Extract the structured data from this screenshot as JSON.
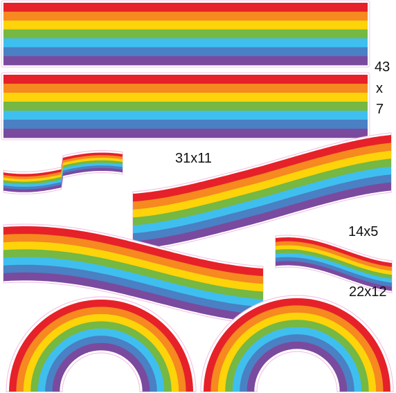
{
  "palette": {
    "red": "#e62129",
    "orange": "#f6891f",
    "yellow": "#fdd30a",
    "green": "#75b843",
    "light_blue": "#3fbfef",
    "blue": "#4a80c4",
    "purple": "#7a4a9e",
    "outline": "#f2c4e4"
  },
  "labels": {
    "stripe_width": "43",
    "stripe_x": "x",
    "stripe_height": "7",
    "wave_large": "31x11",
    "wave_mid": "14x5",
    "wave_small": "22x12"
  },
  "stickers": [
    {
      "kind": "straight-stripe",
      "count": 2
    },
    {
      "kind": "wave",
      "count": 4
    },
    {
      "kind": "arch",
      "count": 2
    }
  ]
}
